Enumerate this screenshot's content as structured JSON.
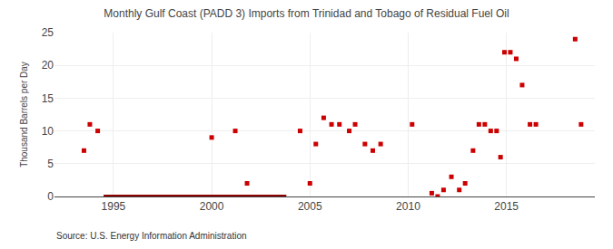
{
  "chart_data": {
    "type": "scatter",
    "title": "Monthly Gulf Coast (PADD 3) Imports from Trinidad and Tobago of Residual Fuel Oil",
    "ylabel": "Thousand Barrels per Day",
    "annotations": [
      "Source: U.S. Energy Information Administration"
    ],
    "xlim": [
      1992.0,
      2019.5
    ],
    "xticks": [
      1995,
      2000,
      2005,
      2010,
      2015
    ],
    "ylim": [
      0,
      25
    ],
    "yticks": [
      0,
      5,
      10,
      15,
      20,
      25
    ],
    "grid": true,
    "series": [
      {
        "type": "scatter",
        "color": "#cc0000",
        "marker": "square",
        "x": [
          1993.5,
          1993.8,
          1994.2,
          2000.0,
          2001.2,
          2001.8,
          2004.5,
          2005.0,
          2005.3,
          2005.7,
          2006.1,
          2006.5,
          2007.0,
          2007.3,
          2007.8,
          2008.2,
          2008.6,
          2010.2,
          2011.2,
          2011.5,
          2011.8,
          2012.2,
          2012.6,
          2012.9,
          2013.3,
          2013.6,
          2013.9,
          2014.2,
          2014.5,
          2014.7,
          2014.9,
          2015.2,
          2015.5,
          2015.8,
          2016.2,
          2016.5,
          2018.5,
          2018.8
        ],
        "values": [
          7,
          11,
          10,
          9,
          10,
          2,
          10,
          2,
          8,
          12,
          11,
          11,
          10,
          11,
          8,
          7,
          8,
          11,
          0.5,
          0,
          1,
          3,
          1,
          2,
          7,
          11,
          11,
          10,
          10,
          6,
          22,
          22,
          21,
          17,
          11,
          11,
          24,
          11
        ]
      },
      {
        "type": "line",
        "color": "#8b0000",
        "x": [
          1994.5,
          2003.8
        ],
        "values": [
          0,
          0
        ]
      }
    ]
  }
}
